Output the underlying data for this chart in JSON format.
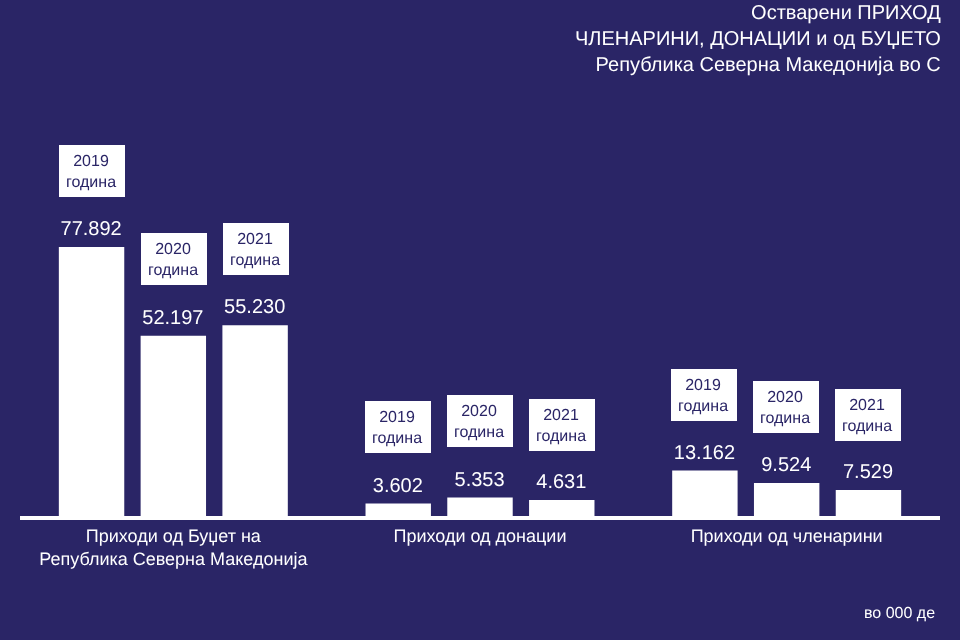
{
  "chart_data": {
    "type": "bar",
    "title": "Остварени ПРИХОД\nЧЛЕНАРИНИ, ДОНАЦИИ и од БУЏЕТО\nРепублика Северна Македонија во С",
    "categories": [
      "Приходи од Буџет на Република Северна Македонија",
      "Приходи од донации",
      "Приходи од членарини"
    ],
    "series": [
      {
        "name": "2019 година",
        "color": "#ffffff",
        "values": [
          77892,
          3602,
          13162
        ],
        "value_labels": [
          "77.892",
          "3.602",
          "13.162"
        ]
      },
      {
        "name": "2020 година",
        "color": "#ffffff",
        "values": [
          52197,
          5353,
          9524
        ],
        "value_labels": [
          "52.197",
          "5.353",
          "9.524"
        ]
      },
      {
        "name": "2021 година",
        "color": "#ffffff",
        "values": [
          55230,
          4631,
          7529
        ],
        "value_labels": [
          "55.230",
          "4.631",
          "7.529"
        ]
      }
    ],
    "legend": false,
    "grid": false,
    "annotations": [
      "во 000 де"
    ]
  }
}
